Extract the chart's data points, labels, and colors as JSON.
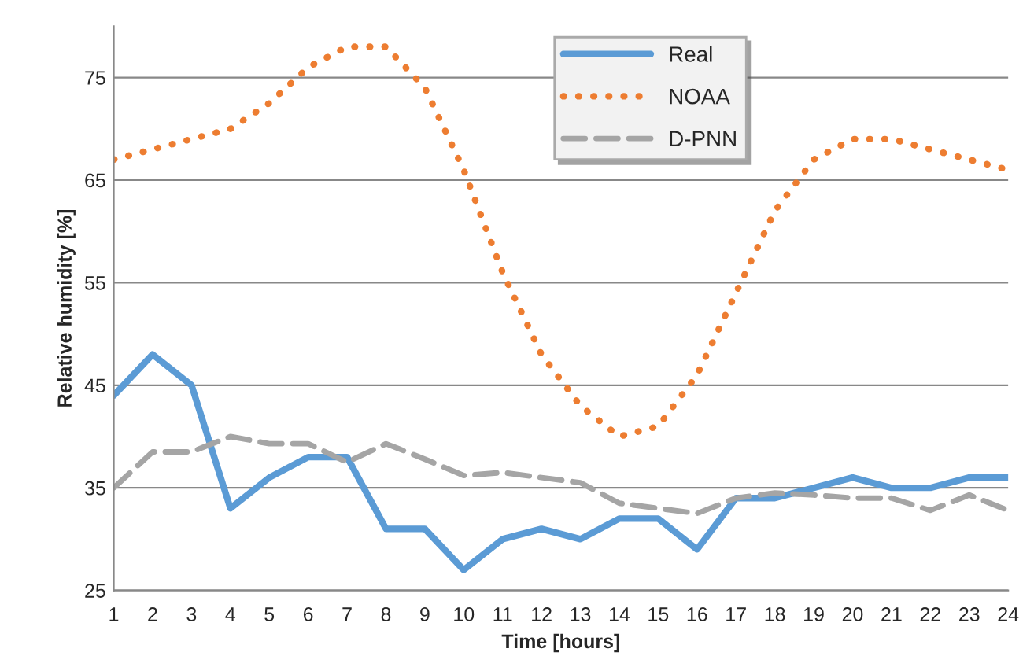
{
  "chart_data": {
    "type": "line",
    "xlabel": "Time [hours]",
    "ylabel": "Relative humidity [%]",
    "categories": [
      "1",
      "2",
      "3",
      "4",
      "5",
      "6",
      "7",
      "8",
      "9",
      "10",
      "11",
      "12",
      "13",
      "14",
      "15",
      "16",
      "17",
      "18",
      "19",
      "20",
      "21",
      "22",
      "23",
      "24"
    ],
    "series": [
      {
        "name": "Real",
        "color": "#5b9bd5",
        "line_style": "solid",
        "values": [
          44,
          48,
          45,
          33,
          36,
          38,
          38,
          31,
          31,
          27,
          30,
          31,
          30,
          32,
          32,
          29,
          34,
          34,
          35,
          36,
          35,
          35,
          36,
          36
        ]
      },
      {
        "name": "NOAA",
        "color": "#ed7d31",
        "line_style": "dotted",
        "values": [
          67,
          68,
          69,
          70,
          72.5,
          76,
          78,
          78,
          74,
          66,
          56,
          48,
          43,
          40,
          41,
          46,
          54,
          62,
          67,
          69,
          69,
          68,
          67,
          66
        ]
      },
      {
        "name": "D-PNN",
        "color": "#a5a5a5",
        "line_style": "dashed",
        "values": [
          35,
          38.5,
          38.5,
          40,
          39.3,
          39.3,
          37.5,
          39.3,
          37.8,
          36.2,
          36.5,
          36,
          35.5,
          33.5,
          33,
          32.5,
          34,
          34.5,
          34.3,
          34,
          34,
          32.8,
          34.3,
          32.8
        ]
      }
    ],
    "ylim": [
      25,
      80
    ],
    "yticks": [
      25,
      35,
      45,
      55,
      65,
      75
    ],
    "grid": "y",
    "legend": "top",
    "marker": "none"
  }
}
